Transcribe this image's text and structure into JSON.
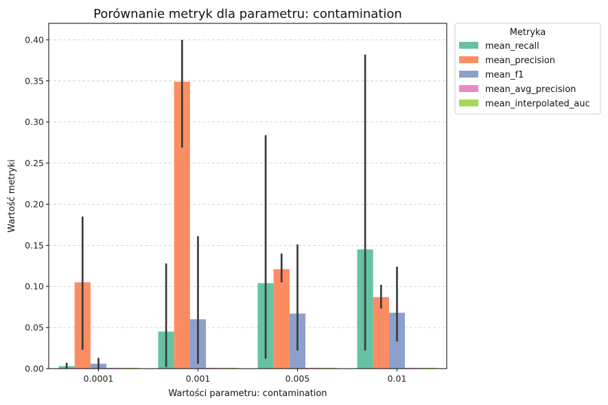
{
  "chart_data": {
    "type": "bar",
    "title": "Porównanie metryk dla parametru: contamination",
    "xlabel": "Wartości parametru: contamination",
    "ylabel": "Wartość metryki",
    "categories": [
      "0.0001",
      "0.001",
      "0.005",
      "0.01"
    ],
    "ylim": [
      0,
      0.42
    ],
    "yticks": [
      0.0,
      0.05,
      0.1,
      0.15,
      0.2,
      0.25,
      0.3,
      0.35,
      0.4
    ],
    "ytick_labels": [
      "0.00",
      "0.05",
      "0.10",
      "0.15",
      "0.20",
      "0.25",
      "0.30",
      "0.35",
      "0.40"
    ],
    "grid": "horizontal dashed",
    "legend": {
      "title": "Metryka",
      "placement": "outside-top-right"
    },
    "series": [
      {
        "name": "mean_recall",
        "color": "#66c2a5",
        "values": [
          0.003,
          0.045,
          0.104,
          0.145
        ],
        "error_low": [
          0.0,
          0.002,
          0.012,
          0.022
        ],
        "error_high": [
          0.007,
          0.128,
          0.284,
          0.382
        ]
      },
      {
        "name": "mean_precision",
        "color": "#fc8d62",
        "values": [
          0.105,
          0.349,
          0.121,
          0.087
        ],
        "error_low": [
          0.023,
          0.269,
          0.105,
          0.073
        ],
        "error_high": [
          0.185,
          0.4,
          0.14,
          0.102
        ]
      },
      {
        "name": "mean_f1",
        "color": "#8da0cb",
        "values": [
          0.006,
          0.06,
          0.067,
          0.068
        ],
        "error_low": [
          0.0,
          0.006,
          0.022,
          0.033
        ],
        "error_high": [
          0.013,
          0.161,
          0.151,
          0.124
        ]
      },
      {
        "name": "mean_avg_precision",
        "color": "#e78ac3",
        "values": [
          0.001,
          0.001,
          0.001,
          0.001
        ],
        "error_low": [
          0.001,
          0.001,
          0.001,
          0.001
        ],
        "error_high": [
          0.001,
          0.001,
          0.001,
          0.001
        ]
      },
      {
        "name": "mean_interpolated_auc",
        "color": "#a6d854",
        "values": [
          0.001,
          0.001,
          0.001,
          0.001
        ],
        "error_low": [
          0.001,
          0.001,
          0.001,
          0.001
        ],
        "error_high": [
          0.001,
          0.001,
          0.001,
          0.001
        ]
      }
    ],
    "errorbar_color": "#3b3b3b"
  }
}
